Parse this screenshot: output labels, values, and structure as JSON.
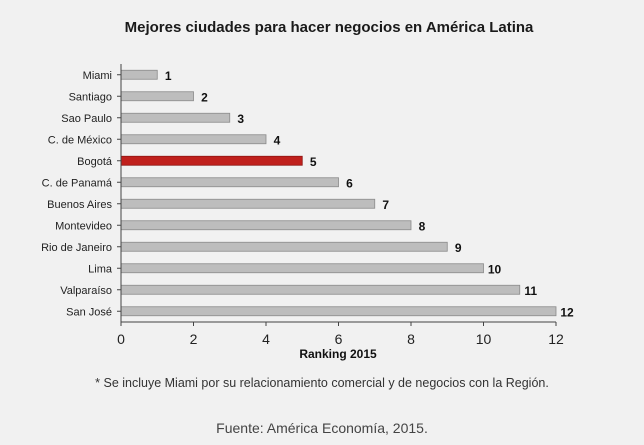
{
  "chart_data": {
    "type": "bar",
    "orientation": "horizontal",
    "title": "Mejores ciudades para hacer negocios en América Latina",
    "xlabel": "Ranking 2015",
    "ylabel": "",
    "categories": [
      "Miami",
      "Santiago",
      "Sao Paulo",
      "C. de México",
      "Bogotá",
      "C. de Panamá",
      "Buenos Aires",
      "Montevideo",
      "Rio de Janeiro",
      "Lima",
      "Valparaíso",
      "San José"
    ],
    "values": [
      1,
      2,
      3,
      4,
      5,
      6,
      7,
      8,
      9,
      10,
      11,
      12
    ],
    "data_labels": [
      "1",
      "2",
      "3",
      "4",
      "5",
      "6",
      "7",
      "8",
      "9",
      "10",
      "11",
      "12"
    ],
    "highlight": "Bogotá",
    "xlim": [
      0,
      12
    ],
    "xticks": [
      0,
      2,
      4,
      6,
      8,
      10,
      12
    ],
    "grid": false,
    "colors": {
      "bar": "#bdbdbd",
      "bar_stroke": "#8a8a8a",
      "highlight": "#c0201c",
      "axis": "#444444"
    }
  },
  "footnote": "* Se incluye Miami por su relacionamiento comercial y de negocios con la Región.",
  "source": "Fuente: América Economía, 2015."
}
